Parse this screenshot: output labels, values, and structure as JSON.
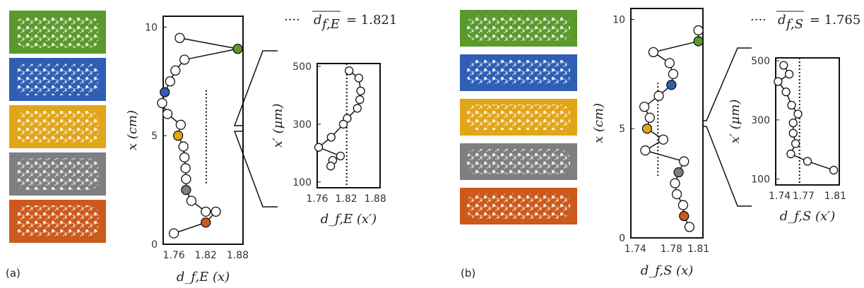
{
  "panel_a_label": "(a)",
  "panel_b_label": "(b)",
  "mean_a": {
    "prefix": "····",
    "symbol": "d",
    "sub": "f,E",
    "value": "= 1.821"
  },
  "mean_b": {
    "prefix": "····",
    "symbol": "d",
    "sub": "f,S",
    "value": "= 1.765"
  },
  "swatch_colors": [
    "#5a9a2c",
    "#2e5fb4",
    "#e1a51a",
    "#7f7f7f",
    "#cc5a1c"
  ],
  "chart_data": [
    {
      "type": "line",
      "panel": "a",
      "xlabel": "d_f,E (x)",
      "ylabel": "x (cm)",
      "xlim": [
        1.74,
        1.89
      ],
      "ylim": [
        0,
        10.5
      ],
      "xticks": [
        "1.76",
        "1.82",
        "1.88"
      ],
      "yticks": [
        "0",
        "5",
        "10"
      ],
      "mean": 1.821,
      "mean_y_range": [
        2.8,
        7.1
      ],
      "points": [
        {
          "x": 1.771,
          "y": 9.5
        },
        {
          "x": 1.88,
          "y": 9.0,
          "color": "#5a9a2c"
        },
        {
          "x": 1.78,
          "y": 8.5
        },
        {
          "x": 1.763,
          "y": 8.0
        },
        {
          "x": 1.753,
          "y": 7.5
        },
        {
          "x": 1.743,
          "y": 7.0,
          "color": "#2e5fb4"
        },
        {
          "x": 1.738,
          "y": 6.5
        },
        {
          "x": 1.748,
          "y": 6.0
        },
        {
          "x": 1.773,
          "y": 5.5
        },
        {
          "x": 1.768,
          "y": 5.0,
          "color": "#e1a51a"
        },
        {
          "x": 1.778,
          "y": 4.5
        },
        {
          "x": 1.78,
          "y": 4.0
        },
        {
          "x": 1.782,
          "y": 3.5
        },
        {
          "x": 1.783,
          "y": 3.0
        },
        {
          "x": 1.783,
          "y": 2.5,
          "color": "#7f7f7f"
        },
        {
          "x": 1.793,
          "y": 2.0
        },
        {
          "x": 1.82,
          "y": 1.5
        },
        {
          "x": 1.839,
          "y": 1.5
        },
        {
          "x": 1.82,
          "y": 1.0,
          "color": "#cc5a1c"
        },
        {
          "x": 1.76,
          "y": 0.5
        }
      ]
    },
    {
      "type": "line",
      "panel": "a-inset",
      "xlabel": "d_f,E (x′)",
      "ylabel": "x′ (μm)",
      "xlim": [
        1.76,
        1.89
      ],
      "ylim": [
        80,
        510
      ],
      "xticks": [
        "1.76",
        "1.82",
        "1.88"
      ],
      "yticks": [
        "100",
        "300",
        "500"
      ],
      "mean": 1.821,
      "points": [
        {
          "x": 1.826,
          "y": 485
        },
        {
          "x": 1.846,
          "y": 460
        },
        {
          "x": 1.85,
          "y": 415
        },
        {
          "x": 1.848,
          "y": 385
        },
        {
          "x": 1.843,
          "y": 355
        },
        {
          "x": 1.822,
          "y": 320
        },
        {
          "x": 1.814,
          "y": 300
        },
        {
          "x": 1.789,
          "y": 255
        },
        {
          "x": 1.763,
          "y": 220
        },
        {
          "x": 1.808,
          "y": 190
        },
        {
          "x": 1.792,
          "y": 175
        },
        {
          "x": 1.788,
          "y": 155
        }
      ]
    },
    {
      "type": "line",
      "panel": "b",
      "xlabel": "d_f,S (x)",
      "ylabel": "x (cm)",
      "xlim": [
        1.735,
        1.815
      ],
      "ylim": [
        0,
        10.5
      ],
      "xticks": [
        "1.74",
        "1.78",
        "1.81"
      ],
      "yticks": [
        "0",
        "5",
        "10"
      ],
      "mean": 1.765,
      "mean_y_range": [
        2.8,
        7.1
      ],
      "points": [
        {
          "x": 1.81,
          "y": 9.5
        },
        {
          "x": 1.81,
          "y": 9.0,
          "color": "#5a9a2c"
        },
        {
          "x": 1.76,
          "y": 8.5
        },
        {
          "x": 1.778,
          "y": 8.0
        },
        {
          "x": 1.782,
          "y": 7.5
        },
        {
          "x": 1.78,
          "y": 7.0,
          "color": "#2e5fb4"
        },
        {
          "x": 1.766,
          "y": 6.5
        },
        {
          "x": 1.75,
          "y": 6.0
        },
        {
          "x": 1.756,
          "y": 5.5
        },
        {
          "x": 1.753,
          "y": 5.0,
          "color": "#e1a51a"
        },
        {
          "x": 1.771,
          "y": 4.5
        },
        {
          "x": 1.751,
          "y": 4.0
        },
        {
          "x": 1.794,
          "y": 3.5
        },
        {
          "x": 1.788,
          "y": 3.0,
          "color": "#7f7f7f"
        },
        {
          "x": 1.784,
          "y": 2.5
        },
        {
          "x": 1.786,
          "y": 2.0
        },
        {
          "x": 1.793,
          "y": 1.5
        },
        {
          "x": 1.794,
          "y": 1.0,
          "color": "#cc5a1c"
        },
        {
          "x": 1.8,
          "y": 0.5
        }
      ]
    },
    {
      "type": "line",
      "panel": "b-inset",
      "xlabel": "d_f,S (x′)",
      "ylabel": "x′ (μm)",
      "xlim": [
        1.735,
        1.815
      ],
      "ylim": [
        80,
        510
      ],
      "xticks": [
        "1.74",
        "1.77",
        "1.81"
      ],
      "yticks": [
        "100",
        "300",
        "500"
      ],
      "mean": 1.765,
      "points": [
        {
          "x": 1.745,
          "y": 485
        },
        {
          "x": 1.752,
          "y": 455
        },
        {
          "x": 1.738,
          "y": 430
        },
        {
          "x": 1.748,
          "y": 395
        },
        {
          "x": 1.755,
          "y": 350
        },
        {
          "x": 1.763,
          "y": 320
        },
        {
          "x": 1.757,
          "y": 290
        },
        {
          "x": 1.757,
          "y": 255
        },
        {
          "x": 1.76,
          "y": 220
        },
        {
          "x": 1.754,
          "y": 185
        },
        {
          "x": 1.775,
          "y": 160
        },
        {
          "x": 1.808,
          "y": 130
        }
      ]
    }
  ]
}
